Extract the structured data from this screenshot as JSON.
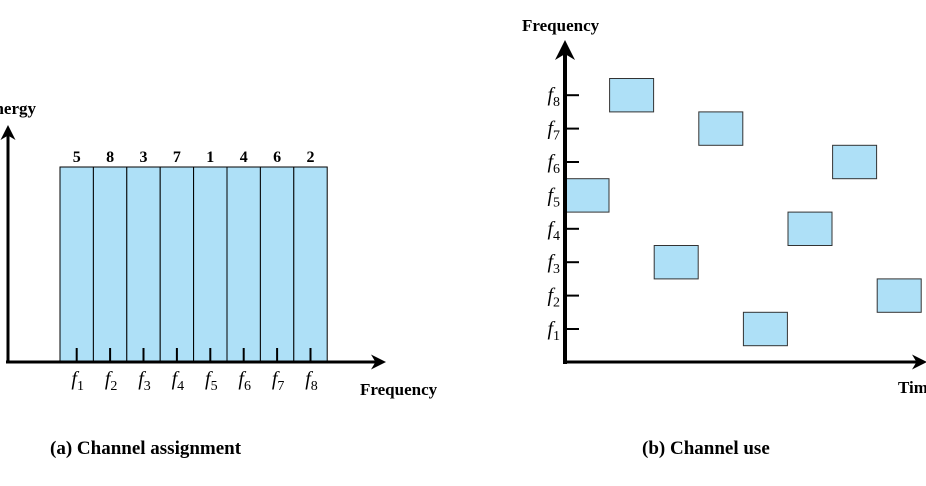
{
  "fill_color": "#aee0f7",
  "panel_a": {
    "caption": "(a) Channel assignment",
    "y_label": "Energy",
    "x_label": "Frequency",
    "channels": [
      "1",
      "2",
      "3",
      "4",
      "5",
      "6",
      "7",
      "8"
    ],
    "assignments": [
      "5",
      "8",
      "3",
      "7",
      "1",
      "4",
      "6",
      "2"
    ]
  },
  "panel_b": {
    "caption": "(b) Channel use",
    "y_label": "Frequency",
    "x_label": "Time",
    "channels": [
      "1",
      "2",
      "3",
      "4",
      "5",
      "6",
      "7",
      "8"
    ],
    "hop_sequence": [
      5,
      8,
      3,
      7,
      1,
      4,
      6,
      2
    ]
  }
}
